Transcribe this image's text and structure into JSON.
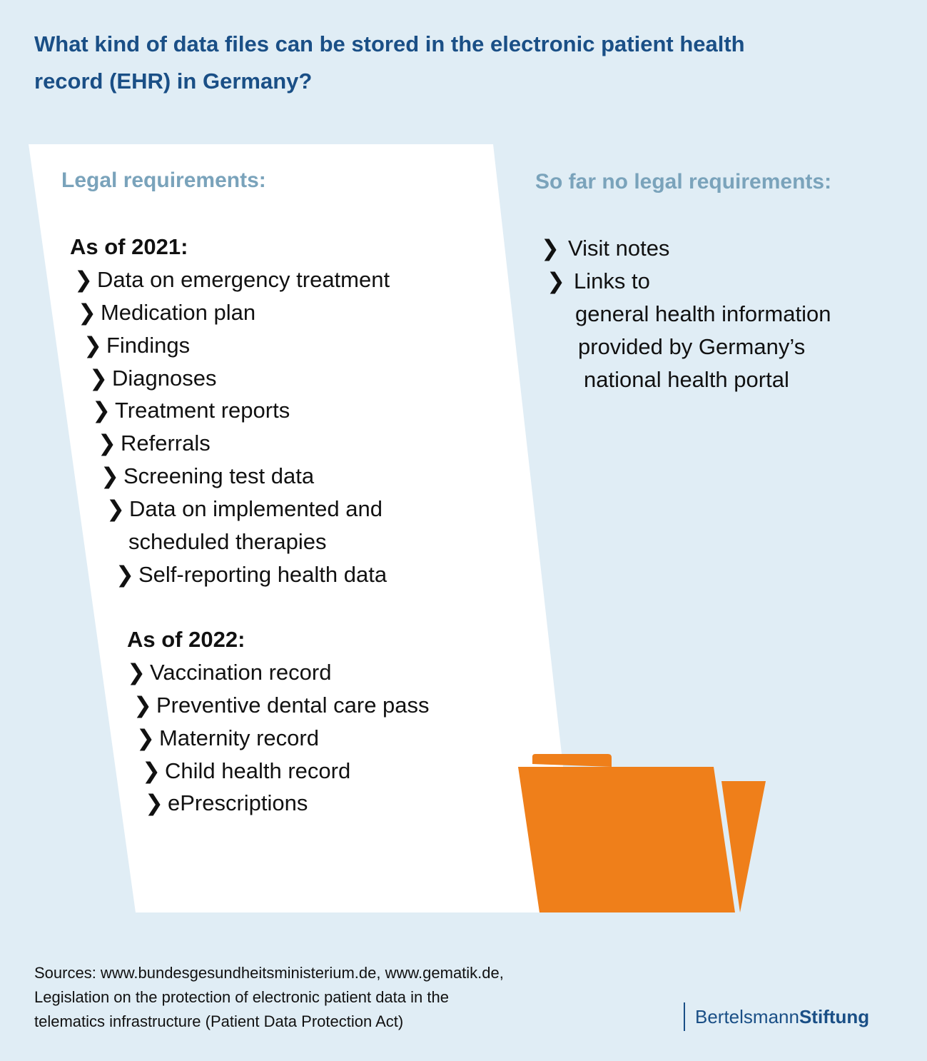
{
  "title": "What kind of data files can be stored in the electronic patient health record (EHR) in Germany?",
  "left_panel": {
    "heading": "Legal requirements:",
    "groups": [
      {
        "year_label": "As of 2021:",
        "items": [
          "Data on emergency treatment",
          "Medication plan",
          "Findings",
          "Diagnoses",
          "Treatment reports",
          "Referrals",
          "Screening test data",
          "Data on implemented and",
          "scheduled therapies",
          "Self-reporting health data"
        ]
      },
      {
        "year_label": "As of 2022:",
        "items": [
          "Vaccination record",
          "Preventive dental care pass",
          "Maternity record",
          "Child health record",
          "ePrescriptions"
        ]
      }
    ]
  },
  "right_panel": {
    "heading": "So far no legal requirements:",
    "lines": [
      "Visit notes",
      "Links to",
      "general health information",
      "provided by Germany’s",
      "national health portal"
    ]
  },
  "bullet_glyph": "❯",
  "colors": {
    "background": "#e0edf5",
    "title": "#1a4f86",
    "heading": "#7aa3bb",
    "folder": "#ef7f1a",
    "sheet": "#ffffff"
  },
  "sources": [
    "Sources: www.bundesgesundheitsministerium.de, www.gematik.de,",
    "Legislation on the protection of electronic patient data in the",
    "telematics infrastructure (Patient Data Protection Act)"
  ],
  "logo": {
    "part1": "Bertelsmann",
    "part2": "Stiftung"
  }
}
